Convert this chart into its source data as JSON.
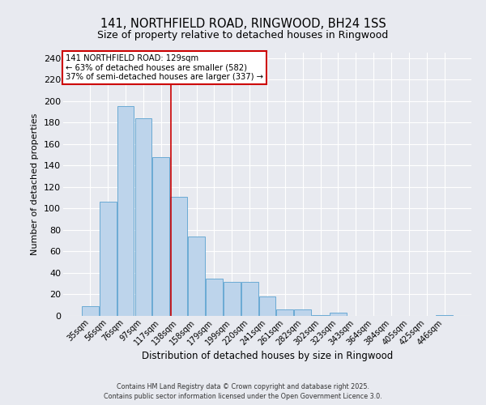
{
  "title": "141, NORTHFIELD ROAD, RINGWOOD, BH24 1SS",
  "subtitle": "Size of property relative to detached houses in Ringwood",
  "xlabel": "Distribution of detached houses by size in Ringwood",
  "ylabel": "Number of detached properties",
  "bar_labels": [
    "35sqm",
    "56sqm",
    "76sqm",
    "97sqm",
    "117sqm",
    "138sqm",
    "158sqm",
    "179sqm",
    "199sqm",
    "220sqm",
    "241sqm",
    "261sqm",
    "282sqm",
    "302sqm",
    "323sqm",
    "343sqm",
    "364sqm",
    "384sqm",
    "405sqm",
    "425sqm",
    "446sqm"
  ],
  "bar_heights": [
    9,
    106,
    195,
    184,
    148,
    111,
    74,
    35,
    32,
    32,
    18,
    6,
    6,
    1,
    3,
    0,
    0,
    0,
    0,
    0,
    1
  ],
  "bar_color": "#bdd4eb",
  "bar_edge_color": "#6aaad4",
  "background_color": "#e8eaf0",
  "grid_color": "#ffffff",
  "red_line_x": 4.57,
  "annotation_title": "141 NORTHFIELD ROAD: 129sqm",
  "annotation_line1": "← 63% of detached houses are smaller (582)",
  "annotation_line2": "37% of semi-detached houses are larger (337) →",
  "annotation_box_color": "#ffffff",
  "annotation_border_color": "#cc0000",
  "red_line_color": "#cc0000",
  "ylim": [
    0,
    245
  ],
  "yticks": [
    0,
    20,
    40,
    60,
    80,
    100,
    120,
    140,
    160,
    180,
    200,
    220,
    240
  ],
  "footer_line1": "Contains HM Land Registry data © Crown copyright and database right 2025.",
  "footer_line2": "Contains public sector information licensed under the Open Government Licence 3.0."
}
